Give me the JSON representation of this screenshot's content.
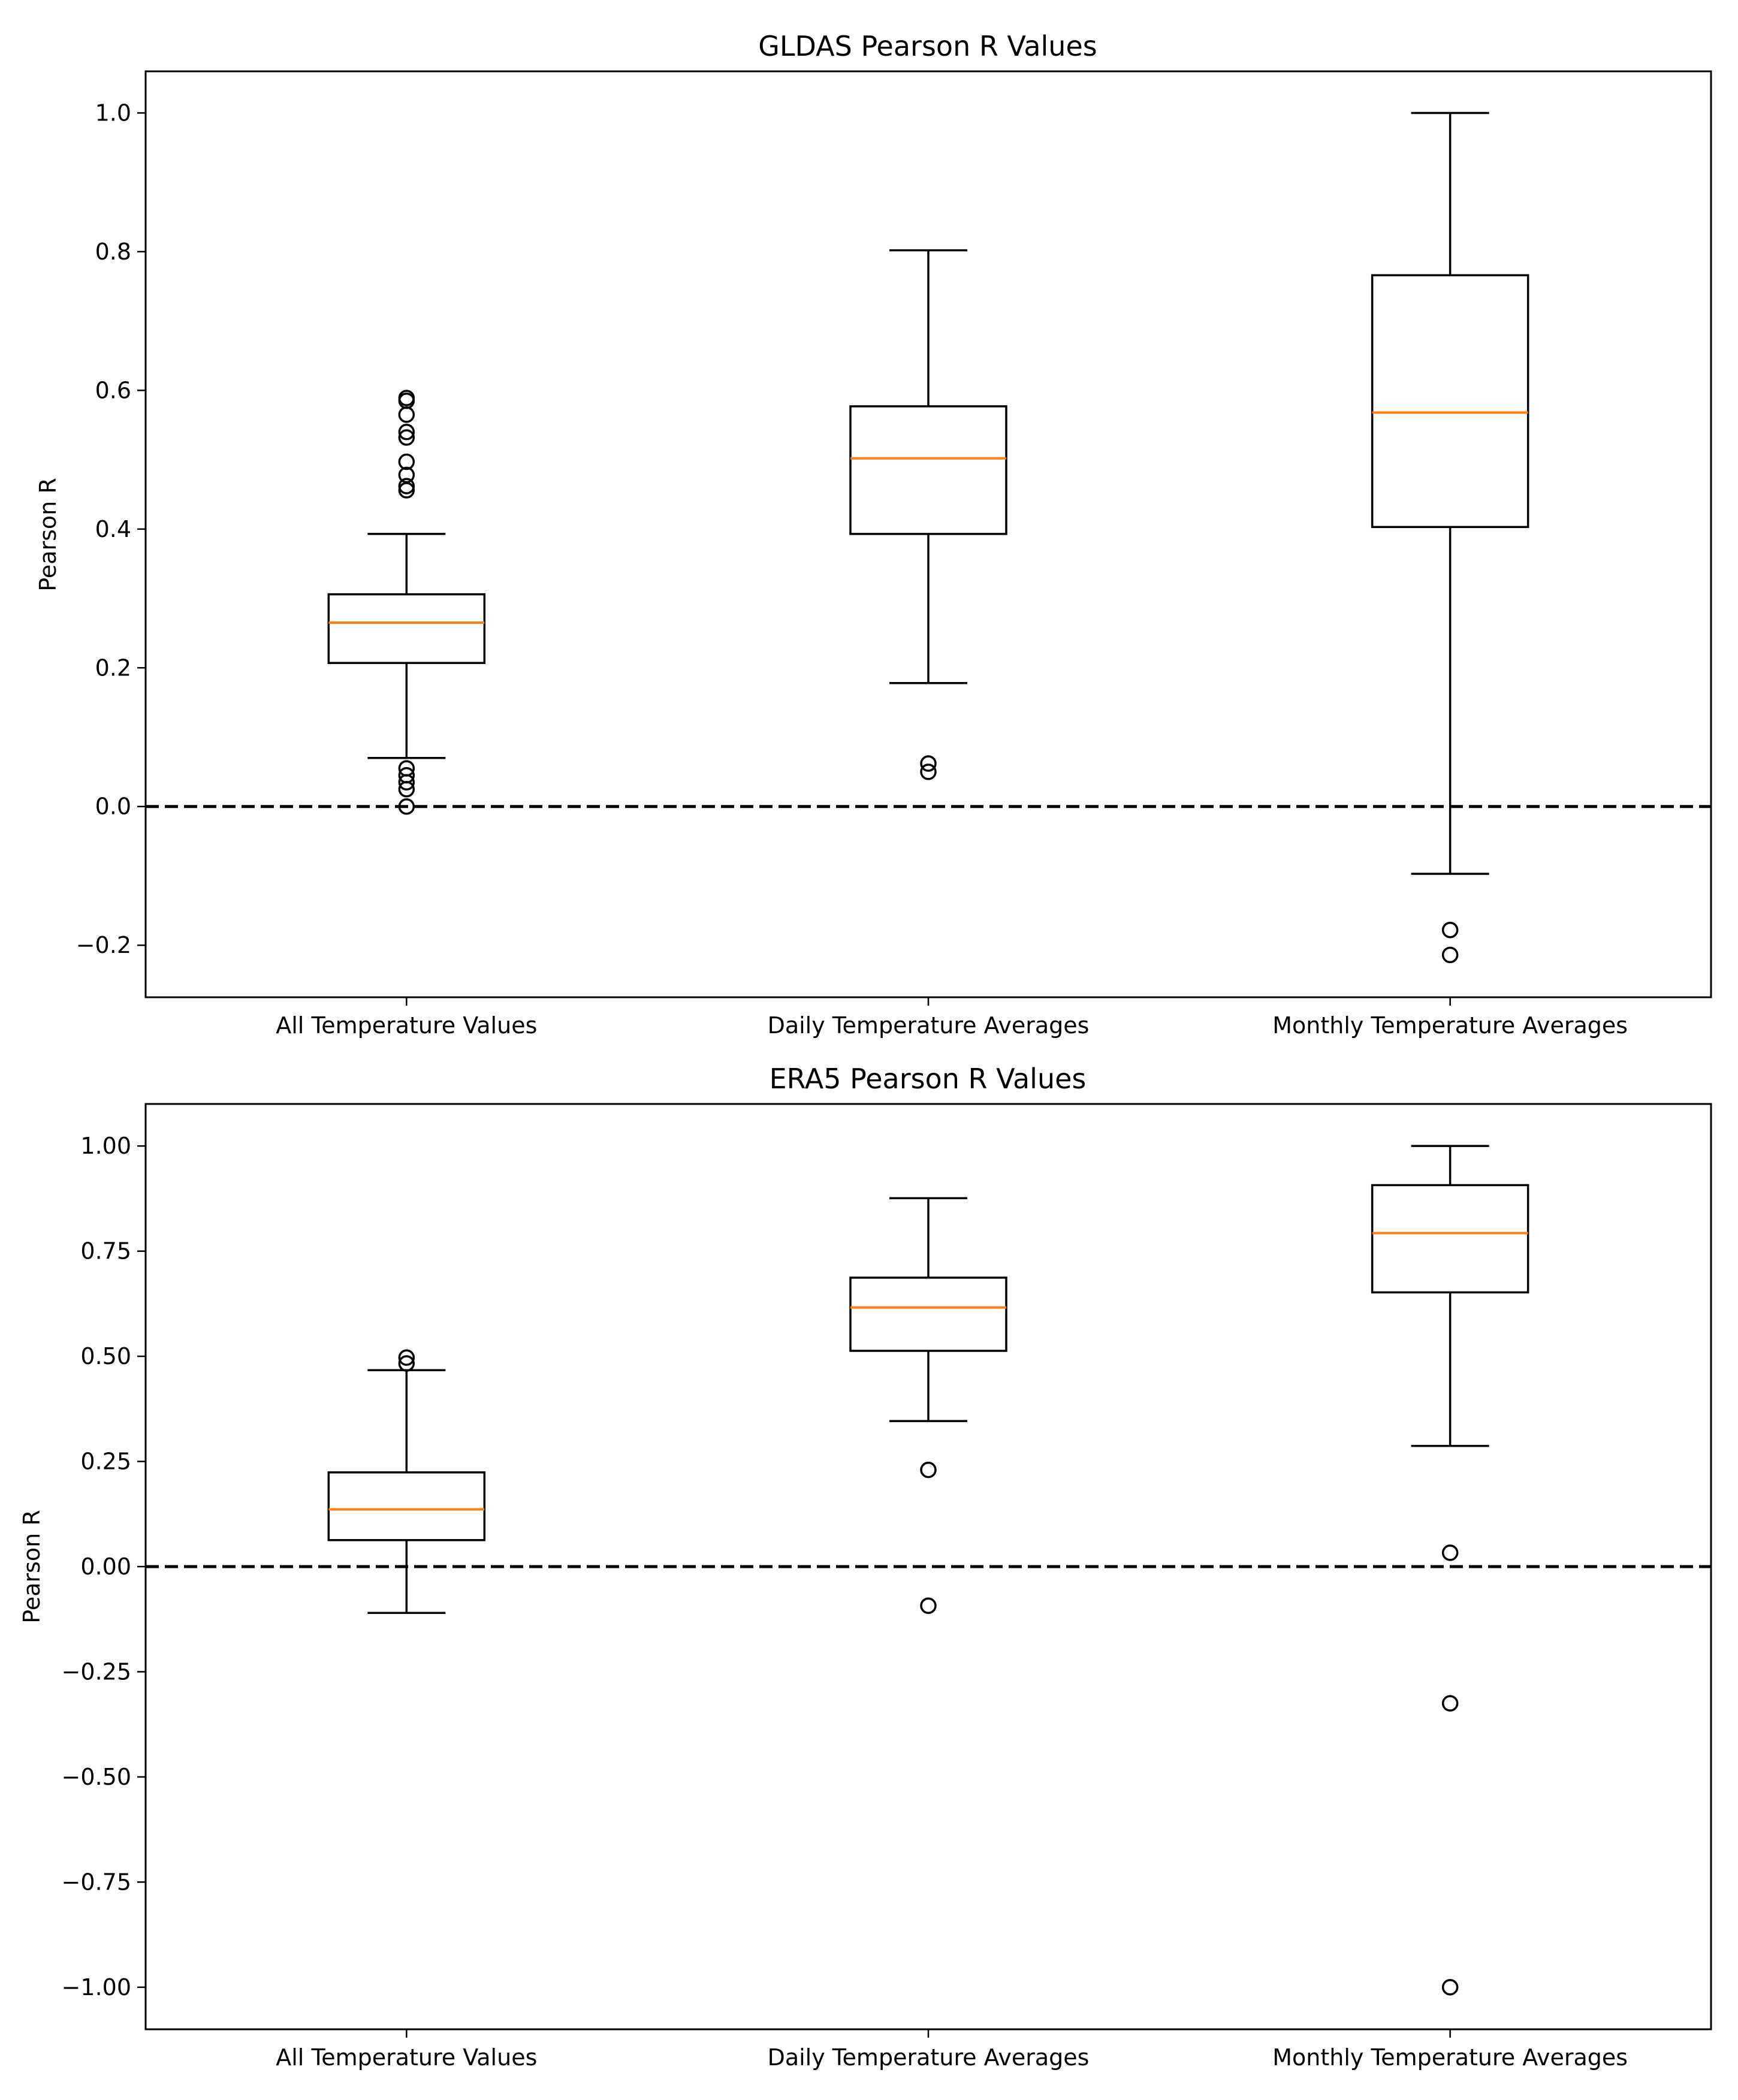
{
  "chart_data": [
    {
      "type": "box",
      "title": "GLDAS Pearson R Values",
      "xlabel": "",
      "ylabel": "Pearson R",
      "ylim": [
        -0.275,
        1.06
      ],
      "yticks": [
        -0.2,
        0.0,
        0.2,
        0.4,
        0.6,
        0.8,
        1.0
      ],
      "ytick_labels": [
        "−0.2",
        "0.0",
        "0.2",
        "0.4",
        "0.6",
        "0.8",
        "1.0"
      ],
      "reference_line": 0.0,
      "categories": [
        "All Temperature Values",
        "Daily Temperature Averages",
        "Monthly Temperature Averages"
      ],
      "boxes": [
        {
          "whisker_low": 0.07,
          "q1": 0.207,
          "median": 0.265,
          "q3": 0.306,
          "whisker_high": 0.393,
          "outliers": [
            0.589,
            0.585,
            0.565,
            0.54,
            0.532,
            0.497,
            0.478,
            0.462,
            0.456,
            0.055,
            0.045,
            0.035,
            0.025,
            0.0
          ]
        },
        {
          "whisker_low": 0.178,
          "q1": 0.393,
          "median": 0.502,
          "q3": 0.577,
          "whisker_high": 0.802,
          "outliers": [
            0.062,
            0.05
          ]
        },
        {
          "whisker_low": -0.097,
          "q1": 0.403,
          "median": 0.568,
          "q3": 0.766,
          "whisker_high": 1.0,
          "outliers": [
            -0.178,
            -0.214
          ]
        }
      ]
    },
    {
      "type": "box",
      "title": "ERA5 Pearson R Values",
      "xlabel": "",
      "ylabel": "Pearson R",
      "ylim": [
        -1.1,
        1.1
      ],
      "yticks": [
        -1.0,
        -0.75,
        -0.5,
        -0.25,
        0.0,
        0.25,
        0.5,
        0.75,
        1.0
      ],
      "ytick_labels": [
        "−1.00",
        "−0.75",
        "−0.50",
        "−0.25",
        "0.00",
        "0.25",
        "0.50",
        "0.75",
        "1.00"
      ],
      "reference_line": 0.0,
      "categories": [
        "All Temperature Values",
        "Daily Temperature Averages",
        "Monthly Temperature Averages"
      ],
      "boxes": [
        {
          "whisker_low": -0.11,
          "q1": 0.063,
          "median": 0.136,
          "q3": 0.224,
          "whisker_high": 0.467,
          "outliers": [
            0.497,
            0.483
          ]
        },
        {
          "whisker_low": 0.346,
          "q1": 0.513,
          "median": 0.616,
          "q3": 0.687,
          "whisker_high": 0.876,
          "outliers": [
            0.23,
            -0.093
          ]
        },
        {
          "whisker_low": 0.287,
          "q1": 0.652,
          "median": 0.793,
          "q3": 0.907,
          "whisker_high": 1.0,
          "outliers": [
            0.033,
            -0.325,
            -1.0
          ]
        }
      ]
    }
  ],
  "colors": {
    "median": "#ff7f0e",
    "box": "#000000",
    "reference_line": "#000000",
    "background": "#ffffff"
  }
}
